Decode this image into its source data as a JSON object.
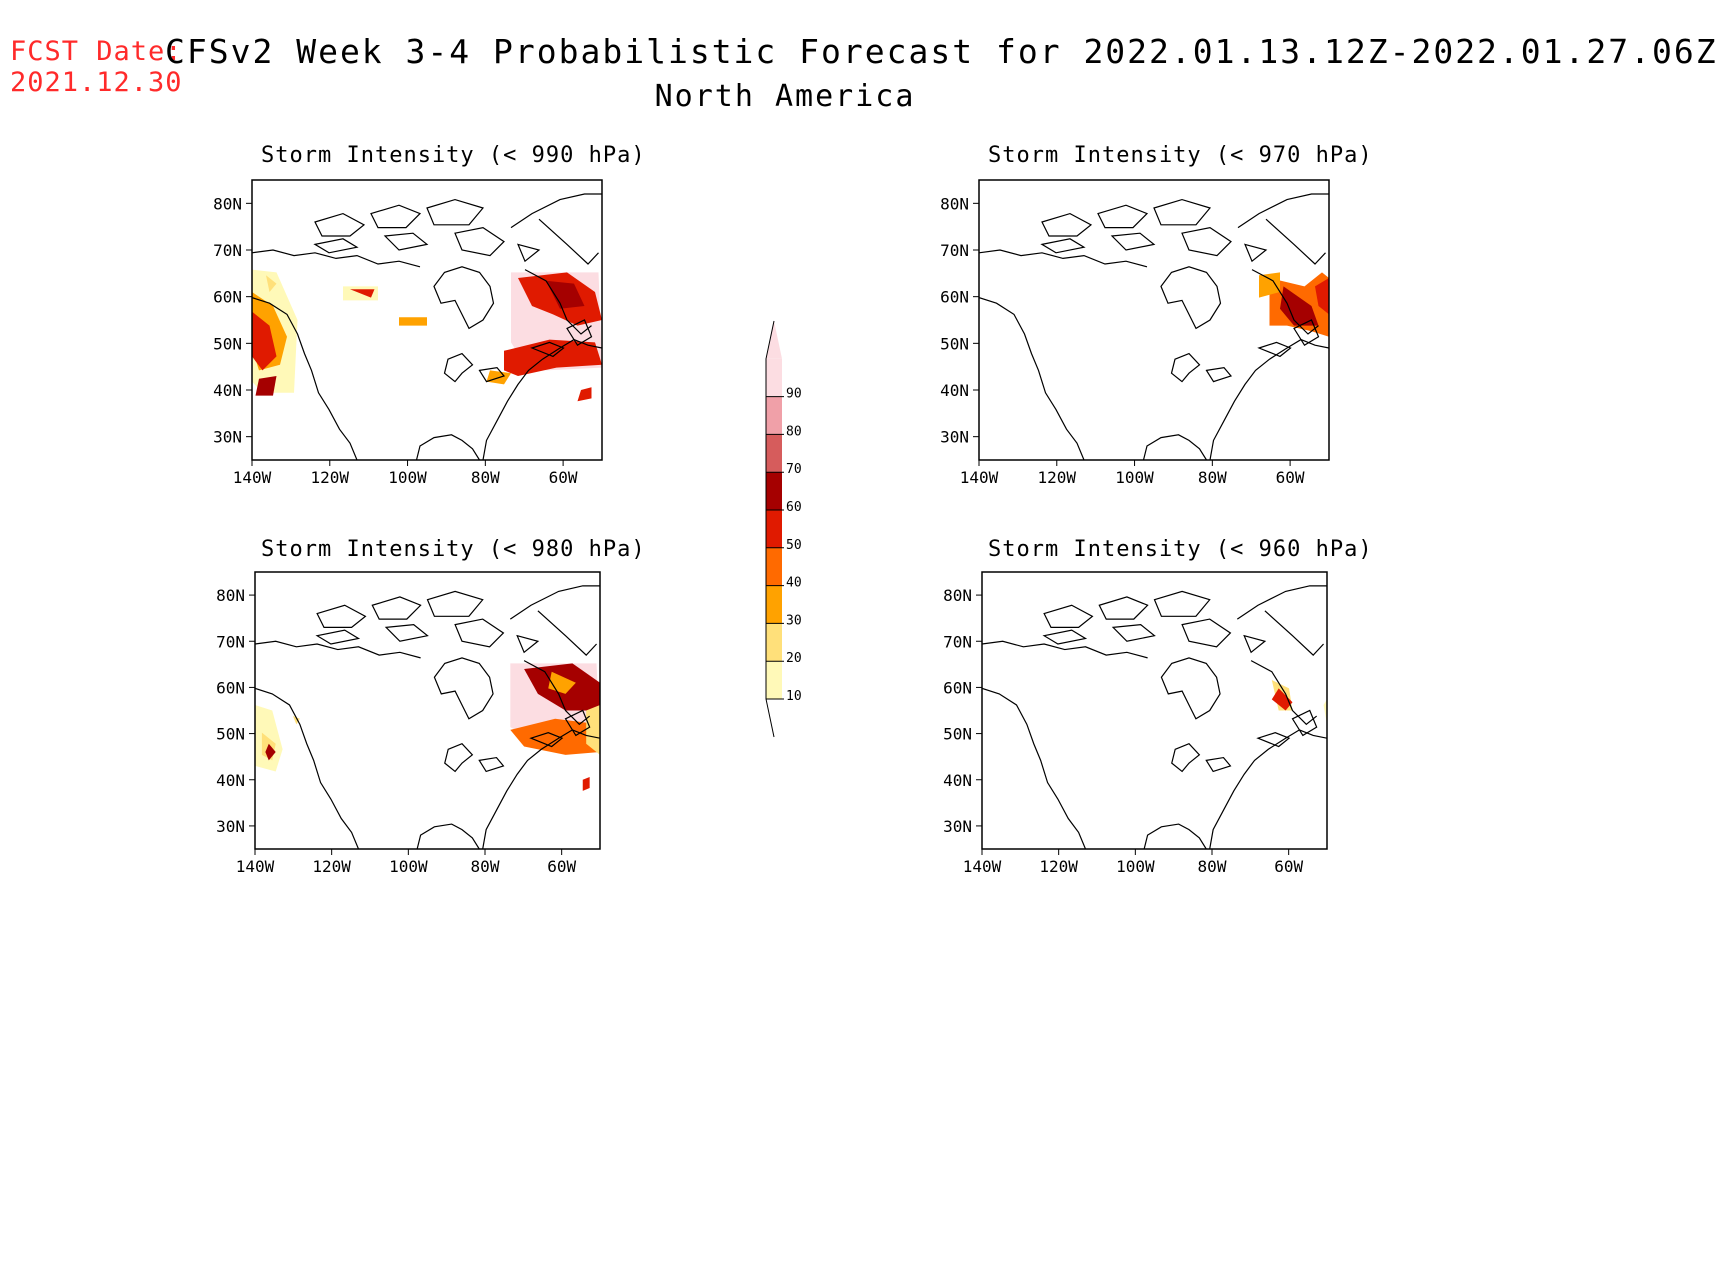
{
  "header": {
    "fcst_label": "FCST Date:",
    "fcst_date": "2021.12.30",
    "title": "CFSv2 Week 3-4 Probabilistic Forecast for 2022.01.13.12Z-2022.01.27.06Z",
    "region": "North America"
  },
  "axes": {
    "lat_ticks": [
      "80N",
      "70N",
      "60N",
      "50N",
      "40N",
      "30N"
    ],
    "lon_ticks": [
      "140W",
      "120W",
      "100W",
      "80W",
      "60W"
    ],
    "lat_values": [
      80,
      70,
      60,
      50,
      40,
      30
    ],
    "lon_values": [
      -140,
      -120,
      -100,
      -80,
      -60
    ]
  },
  "panels": [
    {
      "id": "p990",
      "title": "Storm Intensity (< 990 hPa)",
      "threshold_hPa": 990
    },
    {
      "id": "p970",
      "title": "Storm Intensity (< 970 hPa)",
      "threshold_hPa": 970
    },
    {
      "id": "p980",
      "title": "Storm Intensity (< 980 hPa)",
      "threshold_hPa": 980
    },
    {
      "id": "p960",
      "title": "Storm Intensity (< 960 hPa)",
      "threshold_hPa": 960
    }
  ],
  "colorbar": {
    "levels": [
      "10",
      "20",
      "30",
      "40",
      "50",
      "60",
      "70",
      "80",
      "90"
    ],
    "colors": [
      "#fff9b8",
      "#ffe07a",
      "#ffa200",
      "#ff6a00",
      "#e01a00",
      "#a50000",
      "#d65c5c",
      "#f0a0a8",
      "#fcdde2"
    ]
  },
  "palette": {
    "line": "#000000",
    "fcst_color": "#ff2a2a"
  }
}
